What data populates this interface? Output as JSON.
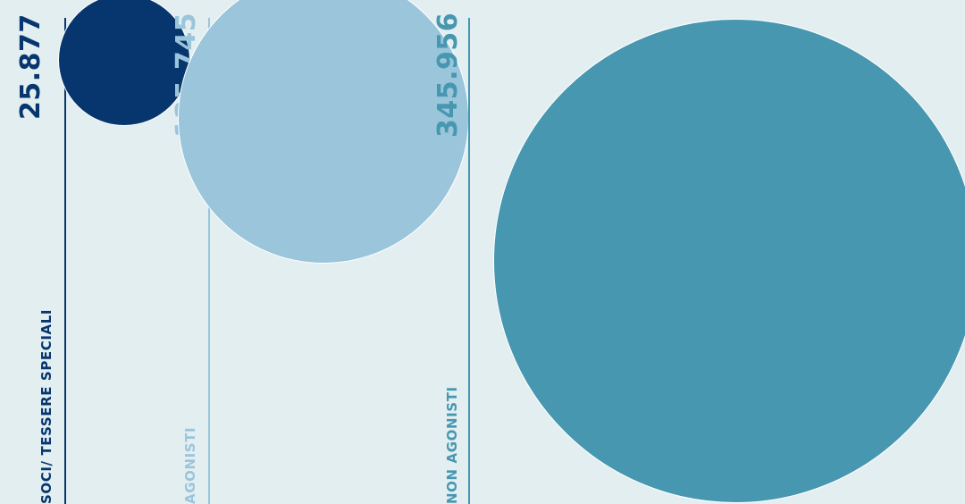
{
  "chart_data": {
    "type": "bubble",
    "categories": [
      {
        "label": "SOCI/ TESSERE SPECIALI",
        "value_text": "25.877",
        "value": 25877,
        "color": "#07366f"
      },
      {
        "label": "AGONISTI",
        "value_text": "125.745",
        "value": 125745,
        "color": "#9ac5db"
      },
      {
        "label": "NON AGONISTI",
        "value_text": "345.956",
        "value": 345956,
        "color": "#4797b0"
      }
    ]
  }
}
